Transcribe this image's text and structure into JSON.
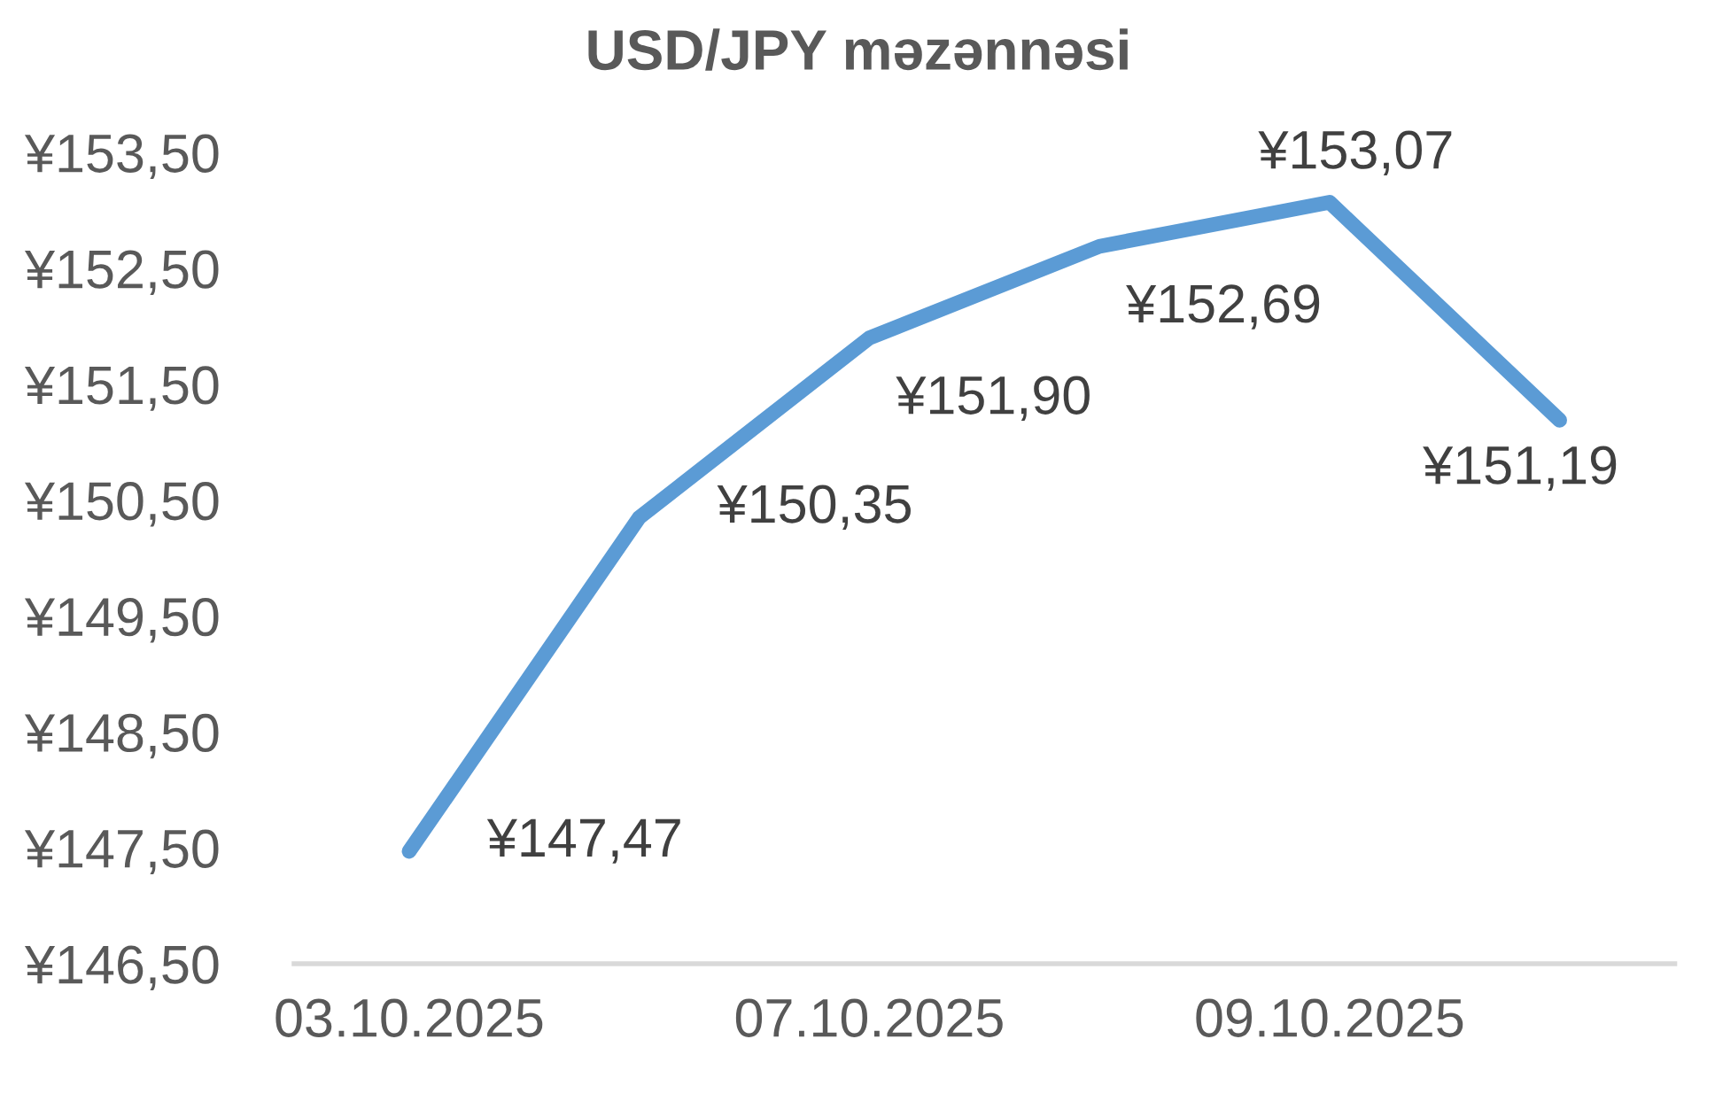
{
  "chart_data": {
    "type": "line",
    "title": "USD/JPY məzənnəsi",
    "categories": [
      "03.10.2025",
      null,
      "07.10.2025",
      null,
      "09.10.2025",
      null
    ],
    "series": [
      {
        "color": "#5b9bd5",
        "values": [
          147.47,
          150.35,
          151.9,
          152.69,
          153.07,
          151.19
        ],
        "value_labels": [
          "¥147,47",
          "¥150,35",
          "¥151,90",
          "¥152,69",
          "¥153,07",
          "¥151,19"
        ]
      }
    ],
    "ylim": [
      146.5,
      153.5
    ],
    "yticks": [
      {
        "value": 146.5,
        "label": "¥146,50"
      },
      {
        "value": 147.5,
        "label": "¥147,50"
      },
      {
        "value": 148.5,
        "label": "¥148,50"
      },
      {
        "value": 149.5,
        "label": "¥149,50"
      },
      {
        "value": 150.5,
        "label": "¥150,50"
      },
      {
        "value": 151.5,
        "label": "¥151,50"
      },
      {
        "value": 152.5,
        "label": "¥152,50"
      },
      {
        "value": 153.5,
        "label": "¥153,50"
      }
    ],
    "grid": false,
    "marker": "none",
    "line_style": "solid"
  }
}
